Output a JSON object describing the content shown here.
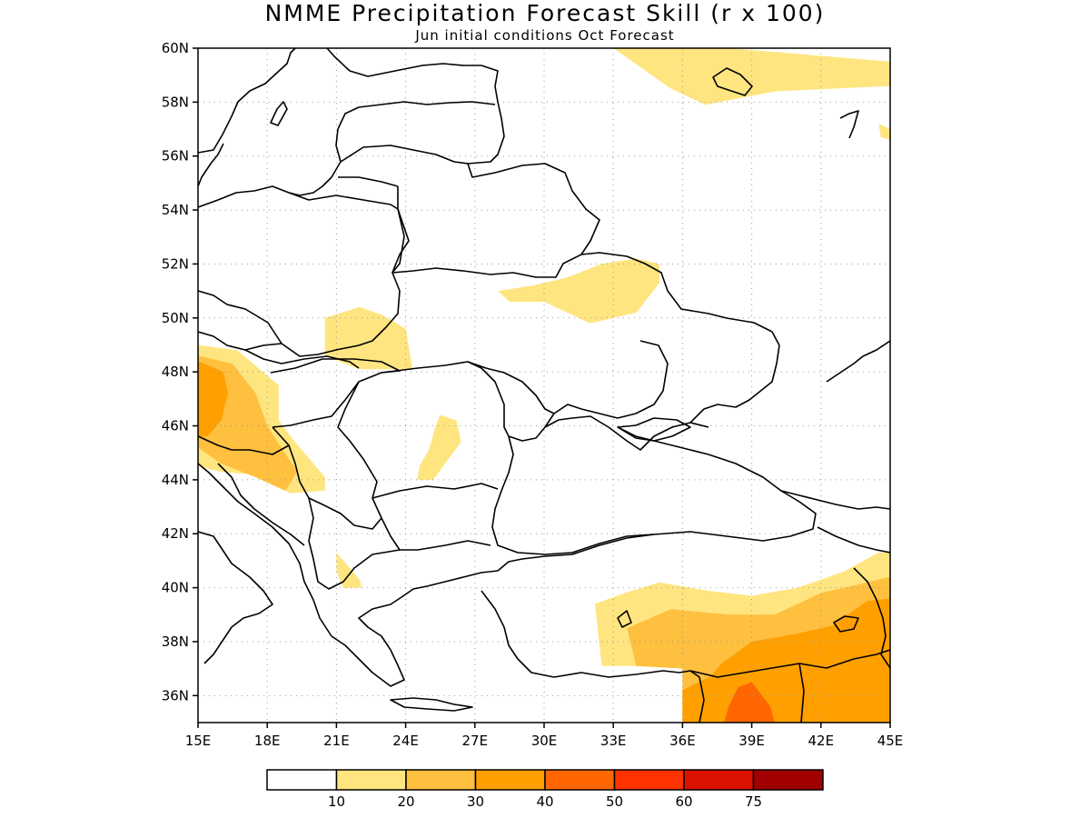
{
  "title": "NMME Precipitation Forecast Skill (r x 100)",
  "subtitle": "Jun initial conditions  Oct Forecast",
  "map": {
    "lon_range": [
      15,
      45
    ],
    "lat_range": [
      35,
      60
    ],
    "lat_ticks": [
      "60N",
      "58N",
      "56N",
      "54N",
      "52N",
      "50N",
      "48N",
      "46N",
      "44N",
      "42N",
      "40N",
      "38N",
      "36N"
    ],
    "lon_ticks": [
      "15E",
      "18E",
      "21E",
      "24E",
      "27E",
      "30E",
      "33E",
      "36E",
      "39E",
      "42E",
      "45E"
    ],
    "grid": "dotted",
    "coastlines": true,
    "country_borders": true
  },
  "colorbar": {
    "colors": [
      "#ffffff",
      "#ffe57f",
      "#ffbf3f",
      "#ff9f00",
      "#ff6600",
      "#ff3300",
      "#dd1100",
      "#a00000"
    ],
    "labels": [
      "10",
      "20",
      "30",
      "40",
      "50",
      "60",
      "75"
    ]
  },
  "chart_data": {
    "type": "heatmap",
    "title": "NMME Precipitation Forecast Skill (r x 100)",
    "subtitle": "Jun initial conditions  Oct Forecast",
    "levels": [
      10,
      20,
      30,
      40,
      50,
      60,
      75
    ],
    "level_colors": [
      "#ffe57f",
      "#ffbf3f",
      "#ff9f00",
      "#ff6600",
      "#ff3300",
      "#dd1100",
      "#a00000"
    ],
    "regions": [
      {
        "level": 10,
        "polygon": [
          [
            33,
            60
          ],
          [
            38,
            60
          ],
          [
            45,
            59.5
          ],
          [
            45,
            58.6
          ],
          [
            40,
            58.4
          ],
          [
            37,
            57.9
          ],
          [
            35.5,
            58.5
          ]
        ]
      },
      {
        "level": 10,
        "polygon": [
          [
            44.5,
            57.2
          ],
          [
            45,
            57
          ],
          [
            45,
            56.6
          ],
          [
            44.6,
            56.7
          ]
        ]
      },
      {
        "level": 10,
        "polygon": [
          [
            28,
            51
          ],
          [
            29.5,
            51.2
          ],
          [
            31,
            51.5
          ],
          [
            32.5,
            52
          ],
          [
            34,
            52.2
          ],
          [
            35,
            52
          ],
          [
            35,
            51.3
          ],
          [
            34,
            50.2
          ],
          [
            32,
            49.8
          ],
          [
            30,
            50.6
          ],
          [
            28.5,
            50.6
          ]
        ]
      },
      {
        "level": 10,
        "polygon": [
          [
            20.5,
            50
          ],
          [
            22,
            50.4
          ],
          [
            23,
            50.1
          ],
          [
            24,
            49.6
          ],
          [
            24.3,
            48.1
          ],
          [
            22,
            48.1
          ],
          [
            20.5,
            48.6
          ]
        ]
      },
      {
        "level": 10,
        "polygon": [
          [
            15,
            49
          ],
          [
            16.7,
            48.8
          ],
          [
            18.5,
            47.5
          ],
          [
            18.5,
            46.2
          ],
          [
            19.2,
            45.4
          ],
          [
            20.5,
            44.1
          ],
          [
            20.5,
            43.6
          ],
          [
            19,
            43.5
          ],
          [
            17.2,
            44.2
          ],
          [
            16,
            44.3
          ],
          [
            15,
            44.5
          ]
        ]
      },
      {
        "level": 20,
        "polygon": [
          [
            15,
            48.6
          ],
          [
            16.5,
            48.3
          ],
          [
            17.5,
            47.2
          ],
          [
            18,
            46
          ],
          [
            18.6,
            45.2
          ],
          [
            19.3,
            44.3
          ],
          [
            18.8,
            43.6
          ],
          [
            17.5,
            44.1
          ],
          [
            16,
            44.6
          ],
          [
            15,
            45.2
          ]
        ]
      },
      {
        "level": 30,
        "polygon": [
          [
            15,
            48.4
          ],
          [
            16.1,
            48
          ],
          [
            16.3,
            47.2
          ],
          [
            16,
            46.2
          ],
          [
            15.4,
            45.6
          ],
          [
            15,
            45.6
          ]
        ]
      },
      {
        "level": 10,
        "polygon": [
          [
            25.5,
            46.4
          ],
          [
            26.2,
            46.2
          ],
          [
            26.4,
            45.4
          ],
          [
            25.7,
            44.6
          ],
          [
            25.2,
            44
          ],
          [
            24.5,
            44
          ],
          [
            24.6,
            44.5
          ],
          [
            25,
            45.1
          ],
          [
            25.3,
            46
          ]
        ]
      },
      {
        "level": 10,
        "polygon": [
          [
            21,
            41.3
          ],
          [
            21.5,
            40.8
          ],
          [
            22,
            40.3
          ],
          [
            22.1,
            40
          ],
          [
            21.3,
            40
          ],
          [
            21,
            40.6
          ]
        ]
      },
      {
        "level": 10,
        "polygon": [
          [
            32.2,
            39.4
          ],
          [
            33.5,
            39.8
          ],
          [
            35,
            40.2
          ],
          [
            37,
            39.9
          ],
          [
            39,
            39.7
          ],
          [
            41,
            40
          ],
          [
            43,
            40.6
          ],
          [
            44.5,
            41.3
          ],
          [
            45,
            41.3
          ],
          [
            45,
            35
          ],
          [
            36,
            35
          ],
          [
            36,
            37.1
          ],
          [
            32.5,
            37.1
          ]
        ]
      },
      {
        "level": 20,
        "polygon": [
          [
            33.6,
            38.5
          ],
          [
            35.5,
            39.2
          ],
          [
            38,
            39
          ],
          [
            40,
            39
          ],
          [
            42,
            39.8
          ],
          [
            44,
            40.2
          ],
          [
            45,
            40.4
          ],
          [
            45,
            35
          ],
          [
            36,
            35
          ],
          [
            36,
            37
          ],
          [
            34,
            37.1
          ]
        ]
      },
      {
        "level": 30,
        "polygon": [
          [
            37.7,
            37.2
          ],
          [
            39,
            38
          ],
          [
            41,
            38.3
          ],
          [
            42.5,
            38.6
          ],
          [
            44,
            39.5
          ],
          [
            45,
            39.6
          ],
          [
            45,
            35
          ],
          [
            36,
            35
          ],
          [
            36,
            36.2
          ],
          [
            37.2,
            36.7
          ]
        ]
      },
      {
        "level": 40,
        "polygon": [
          [
            38.4,
            36.3
          ],
          [
            39,
            36.5
          ],
          [
            39.8,
            35.6
          ],
          [
            40,
            35
          ],
          [
            37.8,
            35
          ],
          [
            38,
            35.6
          ]
        ]
      }
    ]
  }
}
